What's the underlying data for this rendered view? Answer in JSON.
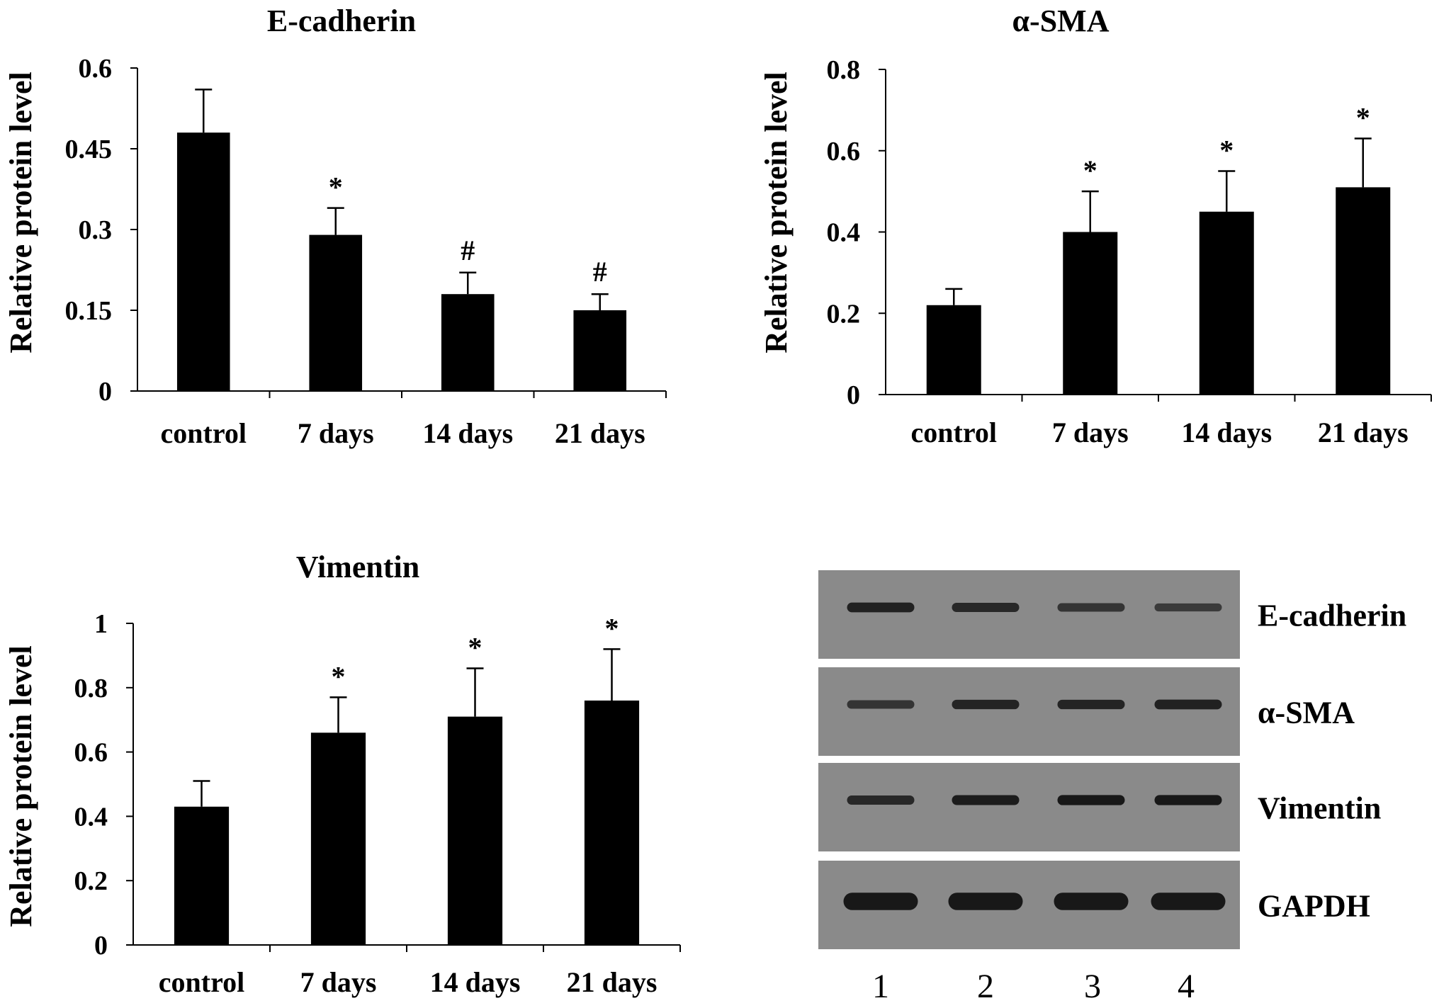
{
  "chart_data": [
    {
      "type": "bar",
      "title": "E-cadherin",
      "ylabel": "Relative protein level",
      "categories": [
        "control",
        "7 days",
        "14 days",
        "21 days"
      ],
      "values": [
        0.48,
        0.29,
        0.18,
        0.15
      ],
      "errors": [
        0.08,
        0.05,
        0.04,
        0.03
      ],
      "significance": [
        "",
        "*",
        "#",
        "#"
      ],
      "ylim": [
        0,
        0.6
      ],
      "yticks": [
        0,
        0.15,
        0.3,
        0.45,
        0.6
      ],
      "ytick_labels": [
        "0",
        "0.15",
        "0.3",
        "0.45",
        "0.6"
      ]
    },
    {
      "type": "bar",
      "title": "α-SMA",
      "ylabel": "Relative protein level",
      "categories": [
        "control",
        "7 days",
        "14 days",
        "21 days"
      ],
      "values": [
        0.22,
        0.4,
        0.45,
        0.51
      ],
      "errors": [
        0.04,
        0.1,
        0.1,
        0.12
      ],
      "significance": [
        "",
        "*",
        "*",
        "*"
      ],
      "ylim": [
        0,
        0.8
      ],
      "yticks": [
        0,
        0.2,
        0.4,
        0.6,
        0.8
      ],
      "ytick_labels": [
        "0",
        "0.2",
        "0.4",
        "0.6",
        "0.8"
      ]
    },
    {
      "type": "bar",
      "title": "Vimentin",
      "ylabel": "Relative protein level",
      "categories": [
        "control",
        "7 days",
        "14 days",
        "21 days"
      ],
      "values": [
        0.43,
        0.66,
        0.71,
        0.76
      ],
      "errors": [
        0.08,
        0.11,
        0.15,
        0.16
      ],
      "significance": [
        "",
        "*",
        "*",
        "*"
      ],
      "ylim": [
        0,
        1
      ],
      "yticks": [
        0,
        0.2,
        0.4,
        0.6,
        0.8,
        1
      ],
      "ytick_labels": [
        "0",
        "0.2",
        "0.4",
        "0.6",
        "0.8",
        "1"
      ]
    }
  ],
  "western_blot": {
    "rows": [
      "E-cadherin",
      "α-SMA",
      "Vimentin",
      "GAPDH"
    ],
    "lanes": [
      "1",
      "2",
      "3",
      "4"
    ],
    "band_intensity": [
      [
        0.85,
        0.75,
        0.6,
        0.5
      ],
      [
        0.6,
        0.8,
        0.8,
        0.85
      ],
      [
        0.75,
        0.9,
        0.95,
        0.95
      ],
      [
        0.95,
        0.95,
        0.95,
        0.95
      ]
    ],
    "colors": {
      "membrane": "#8a8a8a",
      "band": "#151515",
      "gap": "#ffffff"
    }
  }
}
